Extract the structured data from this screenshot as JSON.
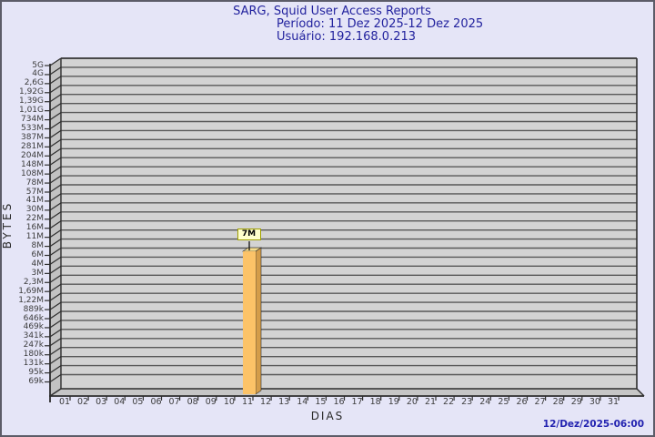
{
  "header": {
    "title": "SARG, Squid User Access Reports",
    "period": "Período: 11 Dez 2025-12 Dez 2025",
    "user": "Usuário: 192.168.0.213"
  },
  "footer": {
    "timestamp": "12/Dez/2025-06:00"
  },
  "chart_data": {
    "type": "bar",
    "title": "SARG, Squid User Access Reports",
    "subtitle": [
      "Período: 11 Dez 2025-12 Dez 2025",
      "Usuário: 192.168.0.213"
    ],
    "xlabel": "DIAS",
    "ylabel": "BYTES",
    "y_scale": "log",
    "grid": true,
    "legend_position": "none",
    "y_tick_labels": [
      "5G",
      "4G",
      "2,6G",
      "1,92G",
      "1,39G",
      "1,01G",
      "734M",
      "533M",
      "387M",
      "281M",
      "204M",
      "148M",
      "108M",
      "78M",
      "57M",
      "41M",
      "30M",
      "22M",
      "16M",
      "11M",
      "8M",
      "6M",
      "4M",
      "3M",
      "2,3M",
      "1,69M",
      "1,22M",
      "889k",
      "646k",
      "469k",
      "341k",
      "247k",
      "180k",
      "131k",
      "95k",
      "69k"
    ],
    "categories": [
      "01",
      "02",
      "03",
      "04",
      "05",
      "06",
      "07",
      "08",
      "09",
      "10",
      "11",
      "12",
      "13",
      "14",
      "15",
      "16",
      "17",
      "18",
      "19",
      "20",
      "21",
      "22",
      "23",
      "24",
      "25",
      "26",
      "27",
      "28",
      "29",
      "30",
      "31"
    ],
    "bars": [
      {
        "category": "11",
        "label": "7M",
        "value_bytes": 7000000
      }
    ],
    "colors": {
      "bar_front": "#fcc368",
      "bar_side": "#d49d4a",
      "bar_top": "#f5dd8d",
      "plot_background": "#d3d3d3",
      "wall": "#c2c2c2",
      "floor": "#c6c6c6",
      "gridline": "#585858",
      "frame": "#2e2e2e",
      "title_text": "#22229e",
      "timestamp_text": "#2222b0",
      "value_box_bg": "#ffffcd",
      "value_box_border": "#a0a000"
    }
  }
}
